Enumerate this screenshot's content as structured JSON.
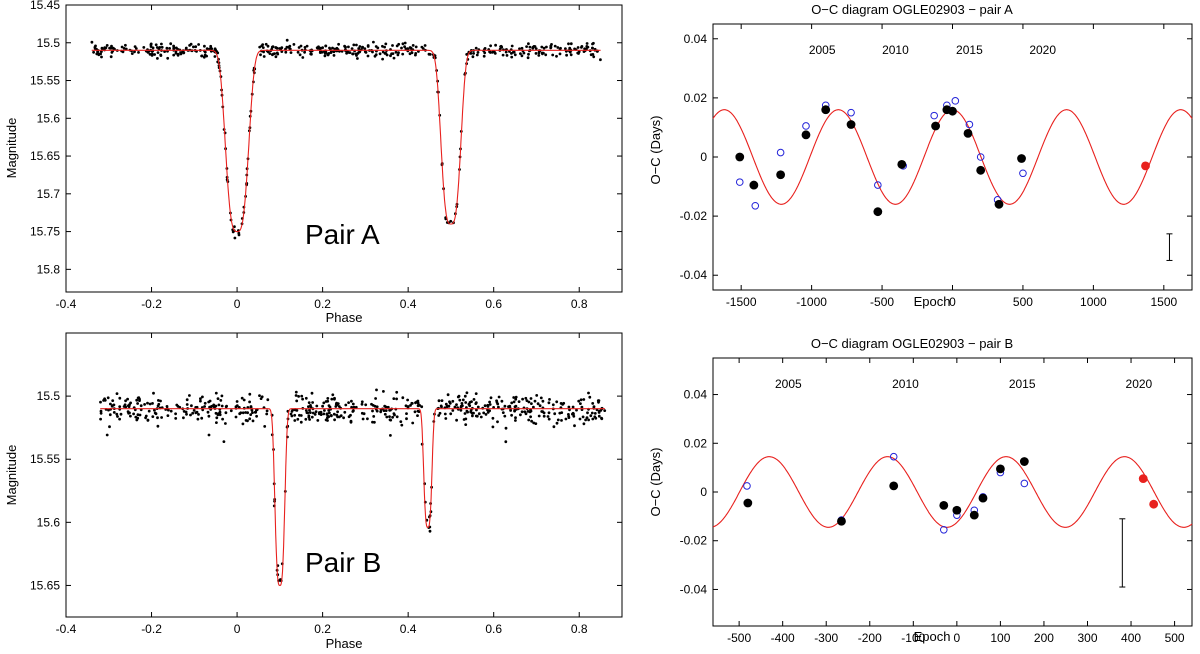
{
  "chart_data": [
    {
      "id": "lcA",
      "type": "scatter",
      "title": "",
      "annotation": "Pair A",
      "xlabel": "Phase",
      "ylabel": "Magnitude",
      "xlim": [
        -0.4,
        0.9
      ],
      "ylim": [
        15.83,
        15.45
      ],
      "y_inverted": true,
      "xticks": [
        -0.4,
        -0.2,
        0,
        0.2,
        0.4,
        0.6,
        0.8
      ],
      "xtick_labels": [
        "-0.4",
        "-0.2",
        "0",
        "0.2",
        "0.4",
        "0.6",
        "0.8"
      ],
      "yticks": [
        15.45,
        15.5,
        15.55,
        15.6,
        15.65,
        15.7,
        15.75,
        15.8
      ],
      "ytick_labels": [
        "15.45",
        "15.5",
        "15.55",
        "15.6",
        "15.65",
        "15.7",
        "15.75",
        "15.8"
      ],
      "data_range": [
        -0.34,
        0.85
      ],
      "model": {
        "baseline": 15.51,
        "eclipses": [
          {
            "center": 0.0,
            "depth": 0.24,
            "width": 0.028
          },
          {
            "center": 0.5,
            "depth": 0.23,
            "width": 0.024
          }
        ]
      },
      "scatter_sigma": 0.006,
      "n_points": 520,
      "series": [
        {
          "name": "observations",
          "color": "#000000"
        },
        {
          "name": "model fit",
          "color": "#e8211e"
        }
      ]
    },
    {
      "id": "lcB",
      "type": "scatter",
      "title": "",
      "annotation": "Pair B",
      "xlabel": "Phase",
      "ylabel": "Magnitude",
      "xlim": [
        -0.4,
        0.9
      ],
      "ylim": [
        15.675,
        15.45
      ],
      "y_inverted": true,
      "xticks": [
        -0.4,
        -0.2,
        0,
        0.2,
        0.4,
        0.6,
        0.8
      ],
      "xtick_labels": [
        "-0.4",
        "-0.2",
        "0",
        "0.2",
        "0.4",
        "0.6",
        "0.8"
      ],
      "yticks": [
        15.5,
        15.55,
        15.6,
        15.65
      ],
      "ytick_labels": [
        "15.5",
        "15.55",
        "15.6",
        "15.65"
      ],
      "data_range": [
        -0.32,
        0.86
      ],
      "model": {
        "baseline": 15.51,
        "eclipses": [
          {
            "center": 0.1,
            "depth": 0.14,
            "width": 0.012
          },
          {
            "center": 0.446,
            "depth": 0.094,
            "width": 0.01
          }
        ]
      },
      "scatter_sigma": 0.007,
      "n_points": 620,
      "series": [
        {
          "name": "observations",
          "color": "#000000"
        },
        {
          "name": "model fit",
          "color": "#e8211e"
        }
      ]
    },
    {
      "id": "ocA",
      "type": "scatter",
      "title": "O−C diagram OGLE02903 − pair A",
      "xlabel": "Epoch",
      "ylabel": "O−C (Days)",
      "xlim": [
        -1700,
        1700
      ],
      "ylim": [
        -0.045,
        0.045
      ],
      "xticks": [
        -1500,
        -1000,
        -500,
        0,
        500,
        1000,
        1500
      ],
      "xtick_labels": [
        "-1500",
        "-1000",
        "-500",
        "0",
        "500",
        "1000",
        "1500"
      ],
      "yticks": [
        -0.04,
        -0.02,
        0,
        0.02,
        0.04
      ],
      "ytick_labels": [
        "-0.04",
        "-0.02",
        "0",
        "0.02",
        "0.04"
      ],
      "top_axis": {
        "label_values": [
          2005,
          2010,
          2015,
          2020
        ],
        "labels": [
          "2005",
          "2010",
          "2015",
          "2020"
        ],
        "epoch_positions": [
          -925,
          -405,
          120,
          640
        ]
      },
      "model": {
        "amplitude": 0.016,
        "period": 810,
        "phase_epoch": 0
      },
      "primary_minima": [
        [
          -1510,
          0.0
        ],
        [
          -1410,
          -0.0095
        ],
        [
          -1220,
          -0.006
        ],
        [
          -1040,
          0.0075
        ],
        [
          -900,
          0.016
        ],
        [
          -720,
          0.011
        ],
        [
          -530,
          -0.0185
        ],
        [
          -360,
          -0.0025
        ],
        [
          -120,
          0.0105
        ],
        [
          -40,
          0.016
        ],
        [
          0,
          0.0155
        ],
        [
          110,
          0.008
        ],
        [
          200,
          -0.0045
        ],
        [
          330,
          -0.016
        ],
        [
          490,
          -0.0005
        ]
      ],
      "secondary_minima": [
        [
          -1510,
          -0.0085
        ],
        [
          -1400,
          -0.0165
        ],
        [
          -1220,
          0.0015
        ],
        [
          -1040,
          0.0105
        ],
        [
          -900,
          0.0175
        ],
        [
          -720,
          0.015
        ],
        [
          -530,
          -0.0095
        ],
        [
          -350,
          -0.003
        ],
        [
          -130,
          0.014
        ],
        [
          -40,
          0.0175
        ],
        [
          20,
          0.019
        ],
        [
          120,
          0.011
        ],
        [
          200,
          0.0
        ],
        [
          320,
          -0.0145
        ],
        [
          500,
          -0.0055
        ]
      ],
      "new_points": [
        [
          1370,
          -0.003
        ]
      ],
      "error_bar": {
        "epoch": 1540,
        "center": -0.0305,
        "half_length": 0.0045
      },
      "series": [
        {
          "name": "primary minima",
          "color": "#000000"
        },
        {
          "name": "secondary minima",
          "color": "#2424d9"
        },
        {
          "name": "new minima",
          "color": "#e8211e"
        },
        {
          "name": "model fit",
          "color": "#e8211e"
        }
      ]
    },
    {
      "id": "ocB",
      "type": "scatter",
      "title": "O−C diagram OGLE02903 − pair B",
      "xlabel": "Epoch",
      "ylabel": "O−C (Days)",
      "xlim": [
        -560,
        540
      ],
      "ylim": [
        -0.055,
        0.055
      ],
      "xticks": [
        -500,
        -400,
        -300,
        -200,
        -100,
        0,
        100,
        200,
        300,
        400,
        500
      ],
      "xtick_labels": [
        "-500",
        "-400",
        "-300",
        "-200",
        "-100",
        "0",
        "100",
        "200",
        "300",
        "400",
        "500"
      ],
      "yticks": [
        -0.04,
        -0.02,
        0,
        0.02,
        0.04
      ],
      "ytick_labels": [
        "-0.04",
        "-0.02",
        "0",
        "0.02",
        "0.04"
      ],
      "top_axis": {
        "label_values": [
          2005,
          2010,
          2015,
          2020
        ],
        "labels": [
          "2005",
          "2010",
          "2015",
          "2020"
        ],
        "epoch_positions": [
          -387,
          -118,
          150,
          418
        ]
      },
      "model": {
        "amplitude": 0.0145,
        "period": 272,
        "phase_epoch": 113
      },
      "primary_minima": [
        [
          -480,
          -0.0045
        ],
        [
          -265,
          -0.012
        ],
        [
          -145,
          0.0025
        ],
        [
          -30,
          -0.0055
        ],
        [
          0,
          -0.0075
        ],
        [
          40,
          -0.0095
        ],
        [
          60,
          -0.0025
        ],
        [
          100,
          0.0095
        ],
        [
          155,
          0.0125
        ]
      ],
      "secondary_minima": [
        [
          -482,
          0.0025
        ],
        [
          -265,
          -0.0115
        ],
        [
          -145,
          0.0145
        ],
        [
          -30,
          -0.0155
        ],
        [
          0,
          -0.0095
        ],
        [
          40,
          -0.0075
        ],
        [
          60,
          -0.002
        ],
        [
          100,
          0.008
        ],
        [
          155,
          0.0035
        ]
      ],
      "new_points": [
        [
          428,
          0.0055
        ],
        [
          452,
          -0.005
        ]
      ],
      "error_bar": {
        "epoch": 380,
        "center": -0.025,
        "half_length": 0.014
      },
      "series": [
        {
          "name": "primary minima",
          "color": "#000000"
        },
        {
          "name": "secondary minima",
          "color": "#2424d9"
        },
        {
          "name": "new minima",
          "color": "#e8211e"
        },
        {
          "name": "model fit",
          "color": "#e8211e"
        }
      ]
    }
  ]
}
